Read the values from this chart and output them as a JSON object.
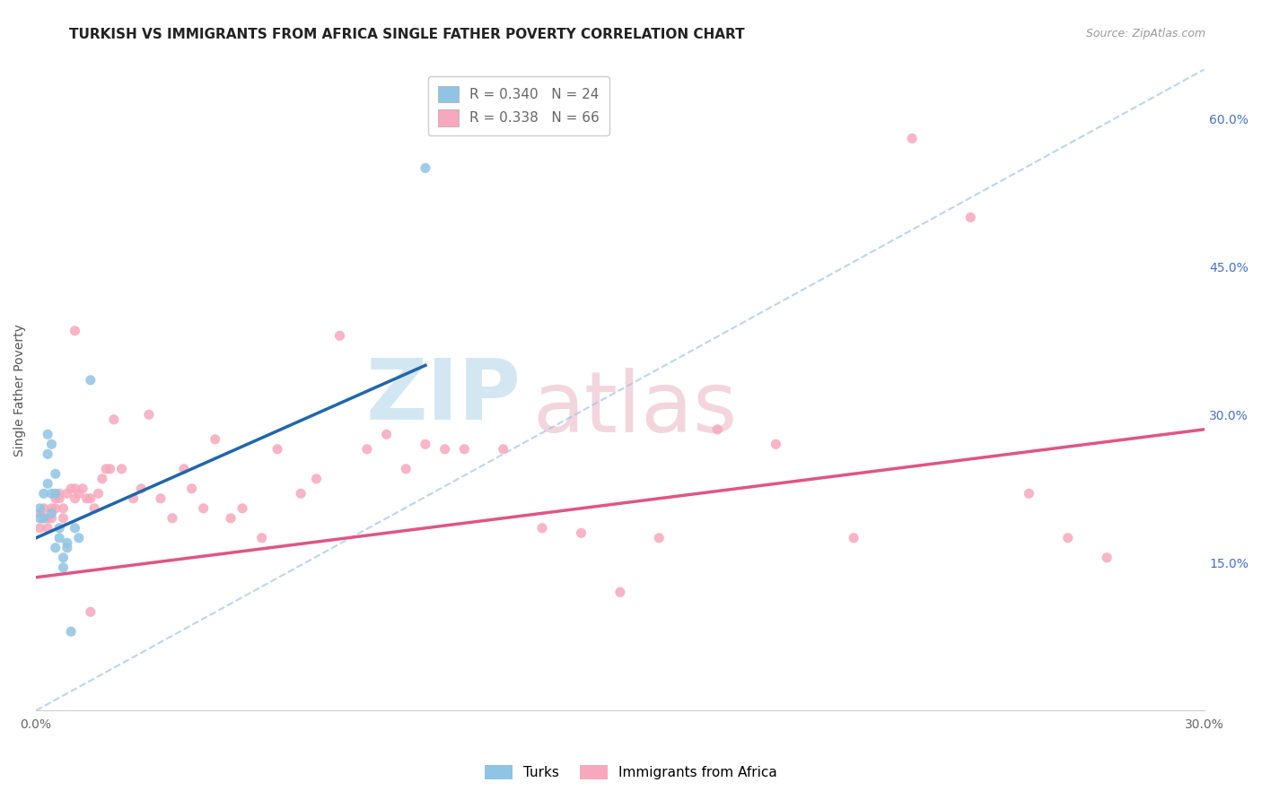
{
  "title": "TURKISH VS IMMIGRANTS FROM AFRICA SINGLE FATHER POVERTY CORRELATION CHART",
  "source": "Source: ZipAtlas.com",
  "ylabel": "Single Father Poverty",
  "xlim": [
    0.0,
    0.3
  ],
  "ylim": [
    0.0,
    0.65
  ],
  "yticks_right": [
    0.15,
    0.3,
    0.45,
    0.6
  ],
  "ytick_labels_right": [
    "15.0%",
    "30.0%",
    "45.0%",
    "60.0%"
  ],
  "legend_r1": "R = 0.340",
  "legend_n1": "N = 24",
  "legend_r2": "R = 0.338",
  "legend_n2": "N = 66",
  "color_turks": "#90c4e4",
  "color_africa": "#f7a8bc",
  "color_line_turks": "#2166ac",
  "color_line_africa": "#e05585",
  "turks_x": [
    0.001,
    0.001,
    0.002,
    0.002,
    0.003,
    0.003,
    0.003,
    0.004,
    0.004,
    0.004,
    0.005,
    0.005,
    0.005,
    0.006,
    0.006,
    0.007,
    0.007,
    0.008,
    0.008,
    0.009,
    0.01,
    0.011,
    0.014,
    0.1
  ],
  "turks_y": [
    0.205,
    0.195,
    0.22,
    0.195,
    0.28,
    0.26,
    0.23,
    0.27,
    0.22,
    0.2,
    0.24,
    0.22,
    0.165,
    0.185,
    0.175,
    0.155,
    0.145,
    0.17,
    0.165,
    0.08,
    0.185,
    0.175,
    0.335,
    0.55
  ],
  "africa_x": [
    0.001,
    0.001,
    0.002,
    0.002,
    0.003,
    0.003,
    0.004,
    0.004,
    0.005,
    0.005,
    0.006,
    0.006,
    0.007,
    0.007,
    0.008,
    0.009,
    0.01,
    0.01,
    0.011,
    0.012,
    0.013,
    0.014,
    0.015,
    0.016,
    0.017,
    0.018,
    0.019,
    0.02,
    0.022,
    0.025,
    0.027,
    0.029,
    0.032,
    0.035,
    0.038,
    0.04,
    0.043,
    0.046,
    0.05,
    0.053,
    0.058,
    0.062,
    0.068,
    0.072,
    0.078,
    0.085,
    0.09,
    0.095,
    0.1,
    0.105,
    0.11,
    0.12,
    0.13,
    0.14,
    0.15,
    0.16,
    0.175,
    0.19,
    0.21,
    0.225,
    0.24,
    0.255,
    0.265,
    0.275,
    0.01,
    0.014
  ],
  "africa_y": [
    0.2,
    0.185,
    0.195,
    0.205,
    0.185,
    0.195,
    0.195,
    0.205,
    0.215,
    0.205,
    0.22,
    0.215,
    0.205,
    0.195,
    0.22,
    0.225,
    0.225,
    0.215,
    0.22,
    0.225,
    0.215,
    0.215,
    0.205,
    0.22,
    0.235,
    0.245,
    0.245,
    0.295,
    0.245,
    0.215,
    0.225,
    0.3,
    0.215,
    0.195,
    0.245,
    0.225,
    0.205,
    0.275,
    0.195,
    0.205,
    0.175,
    0.265,
    0.22,
    0.235,
    0.38,
    0.265,
    0.28,
    0.245,
    0.27,
    0.265,
    0.265,
    0.265,
    0.185,
    0.18,
    0.12,
    0.175,
    0.285,
    0.27,
    0.175,
    0.58,
    0.5,
    0.22,
    0.175,
    0.155,
    0.385,
    0.1
  ],
  "blue_line_x0": 0.0,
  "blue_line_y0": 0.175,
  "blue_line_x1": 0.1,
  "blue_line_y1": 0.35,
  "pink_line_x0": 0.0,
  "pink_line_y0": 0.135,
  "pink_line_x1": 0.3,
  "pink_line_y1": 0.285,
  "diag_line_color": "#a0c4e8",
  "background_color": "#ffffff",
  "grid_color": "#e0e0e0",
  "title_fontsize": 11,
  "axis_label_fontsize": 10,
  "tick_fontsize": 10,
  "legend_fontsize": 11
}
